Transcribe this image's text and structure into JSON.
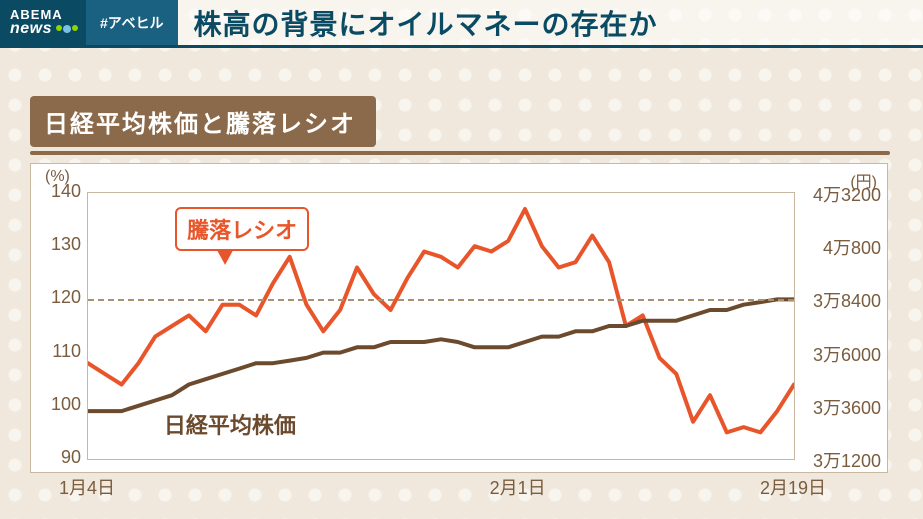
{
  "header": {
    "logo_line1": "ABEMA",
    "logo_line2": "news",
    "hashtag": "#アベヒル",
    "headline": "株高の背景にオイルマネーの存在か"
  },
  "subtitle": "日経平均株価と騰落レシオ",
  "chart": {
    "type": "line-dual-axis",
    "background_color": "#ffffff",
    "page_background": "#f0e8dc",
    "axis_color": "#7a5c3e",
    "grid_dash_color": "#a89070",
    "left_axis": {
      "unit": "(%)",
      "min": 90,
      "max": 140,
      "step": 10,
      "ticks": [
        90,
        100,
        110,
        120,
        130,
        140
      ],
      "dash_at": 120
    },
    "right_axis": {
      "unit": "(円)",
      "ticks_raw": [
        31200,
        33600,
        36000,
        38400,
        40800,
        43200
      ],
      "tick_labels": [
        "3万1200",
        "3万3600",
        "3万6000",
        "3万8400",
        "4万800",
        "4万3200"
      ]
    },
    "x_axis": {
      "ticks": [
        {
          "label": "1月4日",
          "pos": 0.0
        },
        {
          "label": "2月1日",
          "pos": 0.61
        },
        {
          "label": "2月19日",
          "pos": 1.0
        }
      ]
    },
    "series": [
      {
        "name": "騰落レシオ",
        "label": "騰落レシオ",
        "color": "#e8552a",
        "line_width": 4,
        "label_box": {
          "x_pct": 18,
          "y_val": 134,
          "pointer": "down"
        },
        "values": [
          108,
          106,
          104,
          108,
          113,
          115,
          117,
          114,
          119,
          119,
          117,
          123,
          128,
          119,
          114,
          118,
          126,
          121,
          118,
          124,
          129,
          128,
          126,
          130,
          129,
          131,
          137,
          130,
          126,
          127,
          132,
          127,
          115,
          117,
          109,
          106,
          97,
          102,
          95,
          96,
          95,
          99,
          104
        ]
      },
      {
        "name": "日経平均株価",
        "label": "日経平均株価",
        "color": "#6b4a2e",
        "line_width": 4,
        "label_box": {
          "x_pct": 15,
          "y_val": 97
        },
        "values": [
          99,
          99,
          99,
          100,
          101,
          102,
          104,
          105,
          106,
          107,
          108,
          108,
          108.5,
          109,
          110,
          110,
          111,
          111,
          112,
          112,
          112,
          112.5,
          112,
          111,
          111,
          111,
          112,
          113,
          113,
          114,
          114,
          115,
          115,
          116,
          116,
          116,
          117,
          118,
          118,
          119,
          119.5,
          120,
          120
        ]
      }
    ]
  }
}
